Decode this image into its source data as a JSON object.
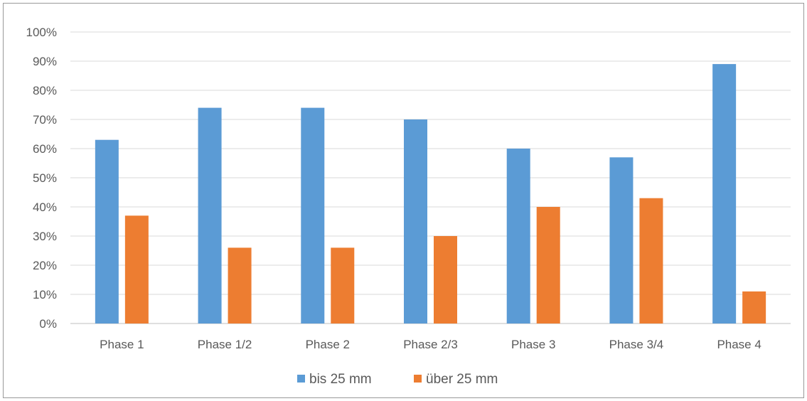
{
  "chart_data": {
    "type": "bar",
    "categories": [
      "Phase 1",
      "Phase 1/2",
      "Phase 2",
      "Phase 2/3",
      "Phase 3",
      "Phase 3/4",
      "Phase 4"
    ],
    "series": [
      {
        "name": "bis 25 mm",
        "values": [
          63,
          74,
          74,
          70,
          60,
          57,
          89
        ],
        "color": "#5B9BD5"
      },
      {
        "name": "über 25 mm",
        "values": [
          37,
          26,
          26,
          30,
          40,
          43,
          11
        ],
        "color": "#ED7D31"
      }
    ],
    "y_ticks": [
      "0%",
      "10%",
      "20%",
      "30%",
      "40%",
      "50%",
      "60%",
      "70%",
      "80%",
      "90%",
      "100%"
    ],
    "ylim": [
      0,
      100
    ],
    "grid": true,
    "legend_position": "bottom"
  }
}
